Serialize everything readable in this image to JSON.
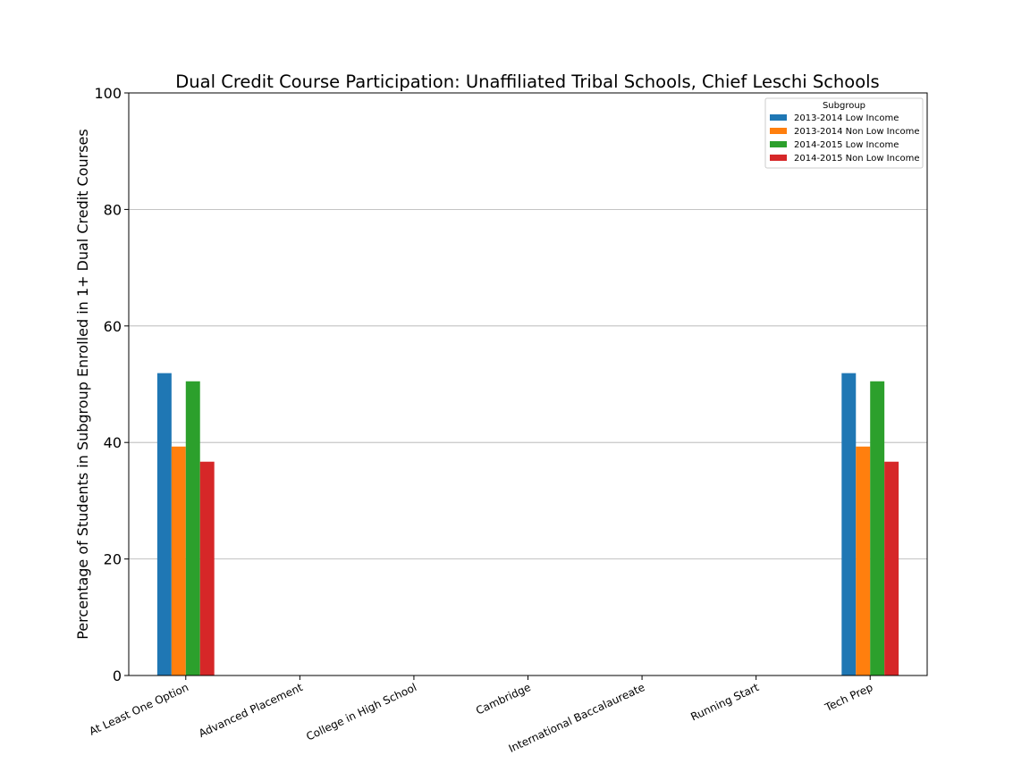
{
  "chart_data": {
    "type": "bar",
    "title": "Dual Credit Course Participation: Unaffiliated Tribal Schools, Chief Leschi Schools",
    "xlabel": "",
    "ylabel": "Percentage of Students in Subgroup Enrolled in 1+ Dual Credit Courses",
    "ylim": [
      0,
      100
    ],
    "yticks": [
      "0",
      "20",
      "40",
      "60",
      "80",
      "100"
    ],
    "grid": "horizontal",
    "legend": {
      "title": "Subgroup",
      "placement": "top-right"
    },
    "categories": [
      "At Least One Option",
      "Advanced Placement",
      "College in High School",
      "Cambridge",
      "International Baccalaureate",
      "Running Start",
      "Tech Prep"
    ],
    "series": [
      {
        "name": "2013-2014 Low Income",
        "color": "#1f77b4",
        "values": [
          51.9,
          0,
          0,
          0,
          0,
          0,
          51.9
        ]
      },
      {
        "name": "2013-2014 Non Low Income",
        "color": "#ff7f0e",
        "values": [
          39.3,
          0,
          0,
          0,
          0,
          0,
          39.3
        ]
      },
      {
        "name": "2014-2015 Low Income",
        "color": "#2ca02c",
        "values": [
          50.5,
          0,
          0,
          0,
          0,
          0,
          50.5
        ]
      },
      {
        "name": "2014-2015 Non Low Income",
        "color": "#d62728",
        "values": [
          36.7,
          0,
          0,
          0,
          0,
          0,
          36.7
        ]
      }
    ]
  }
}
